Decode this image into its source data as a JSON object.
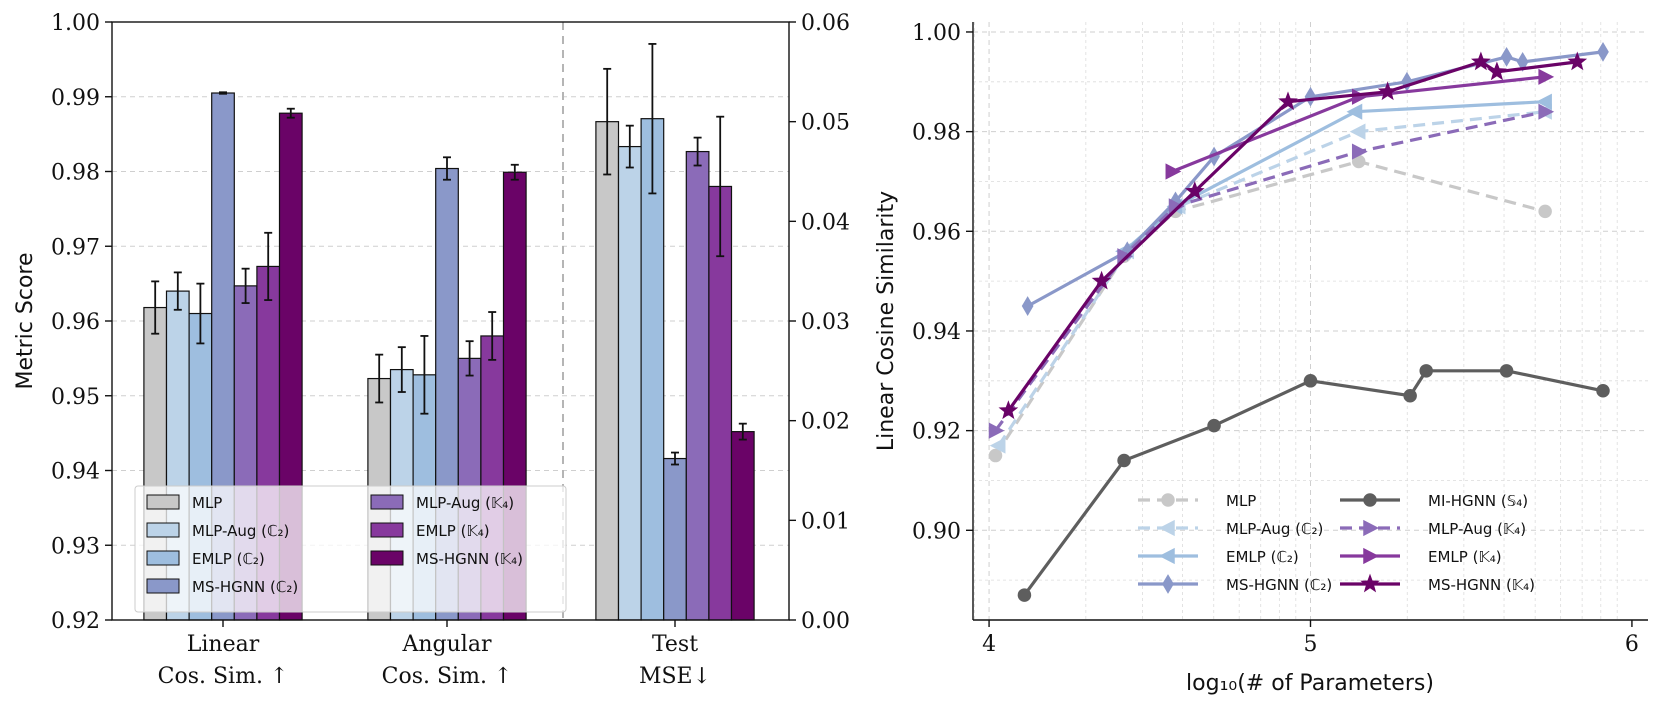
{
  "chart_data": [
    {
      "type": "bar",
      "ylabel": "Metric Score",
      "ylim": [
        0.92,
        1.0
      ],
      "y_ticks": [
        "0.92",
        "0.93",
        "0.94",
        "0.95",
        "0.96",
        "0.97",
        "0.98",
        "0.99",
        "1.00"
      ],
      "y2lim": [
        0.0,
        0.06
      ],
      "y2_ticks": [
        "0.00",
        "0.01",
        "0.02",
        "0.03",
        "0.04",
        "0.05",
        "0.06"
      ],
      "grid": "horizontal dashed",
      "legend_position": "lower-left",
      "groups": [
        {
          "label_line1": "Linear",
          "label_line2": "Cos. Sim. ↑",
          "axis": "left"
        },
        {
          "label_line1": "Angular",
          "label_line2": "Cos. Sim. ↑",
          "axis": "left"
        },
        {
          "label_line1": "Test",
          "label_line2": "MSE↓",
          "axis": "right"
        }
      ],
      "series": [
        {
          "name": "MLP",
          "color": "#c8c8c8",
          "values": [
            0.9618,
            0.9523,
            0.05
          ],
          "errors": [
            0.0035,
            0.0032,
            0.0053
          ]
        },
        {
          "name": "MLP-Aug (ℂ₂)",
          "color": "#bcd3e8",
          "values": [
            0.964,
            0.9535,
            0.0475
          ],
          "errors": [
            0.0025,
            0.003,
            0.0021
          ]
        },
        {
          "name": "EMLP (ℂ₂)",
          "color": "#9ebedf",
          "values": [
            0.961,
            0.9528,
            0.0503
          ],
          "errors": [
            0.004,
            0.0052,
            0.0075
          ]
        },
        {
          "name": "MS-HGNN (ℂ₂)",
          "color": "#8a98c9",
          "values": [
            0.9905,
            0.9804,
            0.0162
          ],
          "errors": [
            0.0001,
            0.0015,
            0.0006
          ]
        },
        {
          "name": "MLP-Aug (𝕂₄)",
          "color": "#8b6bb8",
          "values": [
            0.9647,
            0.955,
            0.047
          ],
          "errors": [
            0.0023,
            0.0023,
            0.0014
          ]
        },
        {
          "name": "EMLP (𝕂₄)",
          "color": "#87399d",
          "values": [
            0.9673,
            0.958,
            0.0435
          ],
          "errors": [
            0.0045,
            0.0032,
            0.007
          ]
        },
        {
          "name": "MS-HGNN (𝕂₄)",
          "color": "#6a0367",
          "values": [
            0.9878,
            0.9799,
            0.0189
          ],
          "errors": [
            0.0006,
            0.001,
            0.0008
          ]
        }
      ]
    },
    {
      "type": "line",
      "xlabel": "log₁₀(# of Parameters)",
      "ylabel": "Linear Cosine Similarity",
      "xlim": [
        3.95,
        6.05
      ],
      "ylim": [
        0.882,
        1.002
      ],
      "x_ticks": [
        "4",
        "5",
        "6"
      ],
      "y_ticks": [
        "0.90",
        "0.92",
        "0.94",
        "0.96",
        "0.98",
        "1.00"
      ],
      "x_scale": "log",
      "grid": "dashed, major and minor",
      "legend_position": "lower-right",
      "series": [
        {
          "name": "MLP",
          "color": "#c8c8c8",
          "style": "dashed",
          "marker": "circle",
          "x": [
            4.02,
            4.42,
            4.58,
            5.15,
            5.73
          ],
          "y": [
            0.915,
            0.955,
            0.964,
            0.974,
            0.964
          ]
        },
        {
          "name": "MLP-Aug (ℂ₂)",
          "color": "#bcd3e8",
          "style": "dashed",
          "marker": "triangle-left",
          "x": [
            4.03,
            4.43,
            4.59,
            5.15,
            5.73
          ],
          "y": [
            0.917,
            0.956,
            0.965,
            0.98,
            0.984
          ]
        },
        {
          "name": "EMLP (ℂ₂)",
          "color": "#9ebedf",
          "style": "solid",
          "marker": "triangle-left",
          "x": [
            4.42,
            4.58,
            5.14,
            5.73
          ],
          "y": [
            0.956,
            0.965,
            0.984,
            0.986
          ]
        },
        {
          "name": "MS-HGNN (ℂ₂)",
          "color": "#8a98c9",
          "style": "solid",
          "marker": "diamond",
          "x": [
            4.12,
            4.43,
            4.58,
            4.7,
            5.0,
            5.3,
            5.61,
            5.66,
            5.91
          ],
          "y": [
            0.945,
            0.956,
            0.966,
            0.975,
            0.987,
            0.99,
            0.995,
            0.994,
            0.996
          ]
        },
        {
          "name": "MI-HGNN (𝕊₄)",
          "color": "#5e5e5e",
          "style": "solid",
          "marker": "circle",
          "x": [
            4.11,
            4.42,
            4.7,
            5.0,
            5.31,
            5.36,
            5.61,
            5.91
          ],
          "y": [
            0.887,
            0.914,
            0.921,
            0.93,
            0.927,
            0.932,
            0.932,
            0.928
          ]
        },
        {
          "name": "MLP-Aug (𝕂₄)",
          "color": "#8b6bb8",
          "style": "dashed",
          "marker": "triangle-right",
          "x": [
            4.02,
            4.42,
            4.58,
            5.15,
            5.73
          ],
          "y": [
            0.92,
            0.955,
            0.965,
            0.976,
            0.984
          ]
        },
        {
          "name": "EMLP (𝕂₄)",
          "color": "#87399d",
          "style": "solid",
          "marker": "triangle-right",
          "x": [
            4.57,
            5.15,
            5.73
          ],
          "y": [
            0.972,
            0.987,
            0.991
          ]
        },
        {
          "name": "MS-HGNN (𝕂₄)",
          "color": "#6a0367",
          "style": "solid",
          "marker": "star",
          "x": [
            4.06,
            4.35,
            4.64,
            4.93,
            5.24,
            5.53,
            5.58,
            5.83
          ],
          "y": [
            0.924,
            0.95,
            0.968,
            0.986,
            0.988,
            0.994,
            0.992,
            0.994
          ]
        }
      ]
    }
  ]
}
